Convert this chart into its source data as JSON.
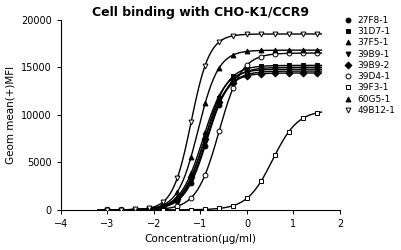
{
  "title": "Cell binding with CHO-K1/CCR9",
  "xlabel": "Concentration(μg/ml)",
  "ylabel": "Geom mean(+)MFI",
  "xlim": [
    -4,
    2
  ],
  "ylim": [
    0,
    20000
  ],
  "yticks": [
    0,
    5000,
    10000,
    15000,
    20000
  ],
  "xticks": [
    -4,
    -3,
    -2,
    -1,
    0,
    1,
    2
  ],
  "series": [
    {
      "label": "27F8-1",
      "marker": "o",
      "fillstyle": "full",
      "ec50_log": -0.85,
      "bottom": 0,
      "top": 15000,
      "hill": 1.8
    },
    {
      "label": "31D7-1",
      "marker": "s",
      "fillstyle": "full",
      "ec50_log": -0.9,
      "bottom": 0,
      "top": 15200,
      "hill": 1.8
    },
    {
      "label": "37F5-1",
      "marker": "^",
      "fillstyle": "full",
      "ec50_log": -0.95,
      "bottom": 0,
      "top": 14800,
      "hill": 1.8
    },
    {
      "label": "39B9-1",
      "marker": "v",
      "fillstyle": "full",
      "ec50_log": -0.88,
      "bottom": 0,
      "top": 14600,
      "hill": 1.8
    },
    {
      "label": "39B9-2",
      "marker": "D",
      "fillstyle": "full",
      "ec50_log": -0.92,
      "bottom": 0,
      "top": 14400,
      "hill": 1.8
    },
    {
      "label": "39D4-1",
      "marker": "o",
      "fillstyle": "none",
      "ec50_log": -0.6,
      "bottom": 0,
      "top": 16500,
      "hill": 1.8
    },
    {
      "label": "39F3-1",
      "marker": "s",
      "fillstyle": "none",
      "ec50_log": 0.55,
      "bottom": 0,
      "top": 10500,
      "hill": 1.6
    },
    {
      "label": "60G5-1",
      "marker": "^",
      "fillstyle": "full",
      "ec50_log": -1.05,
      "bottom": 0,
      "top": 16800,
      "hill": 2.0
    },
    {
      "label": "49B12-1",
      "marker": "v",
      "fillstyle": "none",
      "ec50_log": -1.2,
      "bottom": 0,
      "top": 18500,
      "hill": 2.2
    }
  ],
  "line_color": "black",
  "marker_size": 3.5,
  "linewidth": 1.0,
  "title_fontsize": 9,
  "label_fontsize": 7.5,
  "tick_fontsize": 7,
  "legend_fontsize": 6.5
}
